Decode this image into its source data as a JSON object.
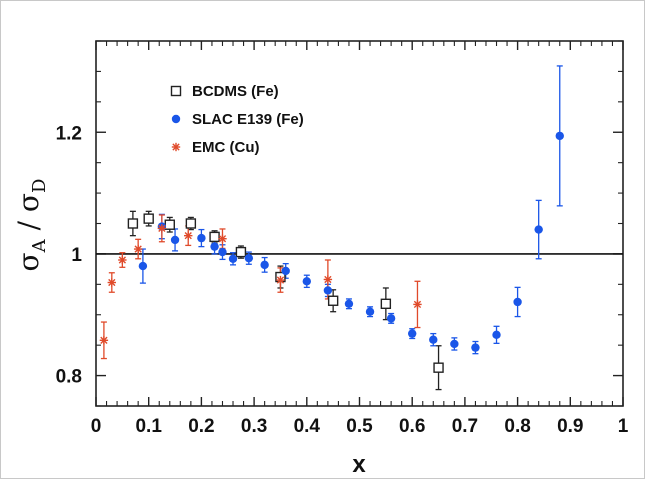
{
  "chart_data": {
    "type": "scatter",
    "xlabel": "x",
    "ylabel": {
      "sigma": "σ",
      "sub_a": "A",
      "slash": " / ",
      "sub_d": "D"
    },
    "xlim": [
      0,
      1
    ],
    "ylim": [
      0.75,
      1.35
    ],
    "x_ticks": [
      "0",
      "0.1",
      "0.2",
      "0.3",
      "0.4",
      "0.5",
      "0.6",
      "0.7",
      "0.8",
      "0.9",
      "1"
    ],
    "x_tick_values": [
      0,
      0.1,
      0.2,
      0.3,
      0.4,
      0.5,
      0.6,
      0.7,
      0.8,
      0.9,
      1.0
    ],
    "y_ticks": [
      "0.8",
      "1",
      "1.2"
    ],
    "y_tick_values": [
      0.8,
      1.0,
      1.2
    ],
    "reference_line": 1.0,
    "grid": false,
    "legend_position": "top-left",
    "series": [
      {
        "name": "BCDMS (Fe)",
        "marker": "open-square",
        "color": "#222222",
        "points": [
          {
            "x": 0.07,
            "y": 1.05,
            "err": 0.02
          },
          {
            "x": 0.1,
            "y": 1.058,
            "err": 0.012
          },
          {
            "x": 0.14,
            "y": 1.048,
            "err": 0.012
          },
          {
            "x": 0.18,
            "y": 1.05,
            "err": 0.01
          },
          {
            "x": 0.225,
            "y": 1.028,
            "err": 0.01
          },
          {
            "x": 0.275,
            "y": 1.003,
            "err": 0.01
          },
          {
            "x": 0.35,
            "y": 0.962,
            "err": 0.018
          },
          {
            "x": 0.45,
            "y": 0.923,
            "err": 0.018
          },
          {
            "x": 0.55,
            "y": 0.918,
            "err": 0.026
          },
          {
            "x": 0.65,
            "y": 0.813,
            "err": 0.036
          }
        ]
      },
      {
        "name": "SLAC E139 (Fe)",
        "marker": "filled-circle",
        "color": "#1a56e8",
        "points": [
          {
            "x": 0.089,
            "y": 0.98,
            "err": 0.028
          },
          {
            "x": 0.125,
            "y": 1.045,
            "err": 0.02
          },
          {
            "x": 0.15,
            "y": 1.023,
            "err": 0.018
          },
          {
            "x": 0.2,
            "y": 1.026,
            "err": 0.014
          },
          {
            "x": 0.225,
            "y": 1.012,
            "err": 0.012
          },
          {
            "x": 0.24,
            "y": 1.003,
            "err": 0.012
          },
          {
            "x": 0.26,
            "y": 0.992,
            "err": 0.01
          },
          {
            "x": 0.29,
            "y": 0.993,
            "err": 0.01
          },
          {
            "x": 0.32,
            "y": 0.982,
            "err": 0.012
          },
          {
            "x": 0.36,
            "y": 0.972,
            "err": 0.012
          },
          {
            "x": 0.4,
            "y": 0.955,
            "err": 0.01
          },
          {
            "x": 0.44,
            "y": 0.94,
            "err": 0.01
          },
          {
            "x": 0.48,
            "y": 0.918,
            "err": 0.008
          },
          {
            "x": 0.52,
            "y": 0.905,
            "err": 0.008
          },
          {
            "x": 0.56,
            "y": 0.894,
            "err": 0.008
          },
          {
            "x": 0.6,
            "y": 0.869,
            "err": 0.008
          },
          {
            "x": 0.64,
            "y": 0.859,
            "err": 0.01
          },
          {
            "x": 0.68,
            "y": 0.852,
            "err": 0.01
          },
          {
            "x": 0.72,
            "y": 0.846,
            "err": 0.01
          },
          {
            "x": 0.76,
            "y": 0.867,
            "err": 0.014
          },
          {
            "x": 0.8,
            "y": 0.921,
            "err": 0.024
          },
          {
            "x": 0.84,
            "y": 1.04,
            "err": 0.048
          },
          {
            "x": 0.88,
            "y": 1.194,
            "err": 0.115
          }
        ]
      },
      {
        "name": "EMC (Cu)",
        "marker": "asterisk",
        "color": "#e04a2a",
        "points": [
          {
            "x": 0.015,
            "y": 0.858,
            "err": 0.03
          },
          {
            "x": 0.03,
            "y": 0.953,
            "err": 0.016
          },
          {
            "x": 0.05,
            "y": 0.99,
            "err": 0.012
          },
          {
            "x": 0.08,
            "y": 1.008,
            "err": 0.016
          },
          {
            "x": 0.125,
            "y": 1.042,
            "err": 0.022
          },
          {
            "x": 0.175,
            "y": 1.03,
            "err": 0.016
          },
          {
            "x": 0.24,
            "y": 1.025,
            "err": 0.016
          },
          {
            "x": 0.35,
            "y": 0.957,
            "err": 0.02
          },
          {
            "x": 0.44,
            "y": 0.958,
            "err": 0.032
          },
          {
            "x": 0.61,
            "y": 0.917,
            "err": 0.038
          }
        ]
      }
    ]
  }
}
